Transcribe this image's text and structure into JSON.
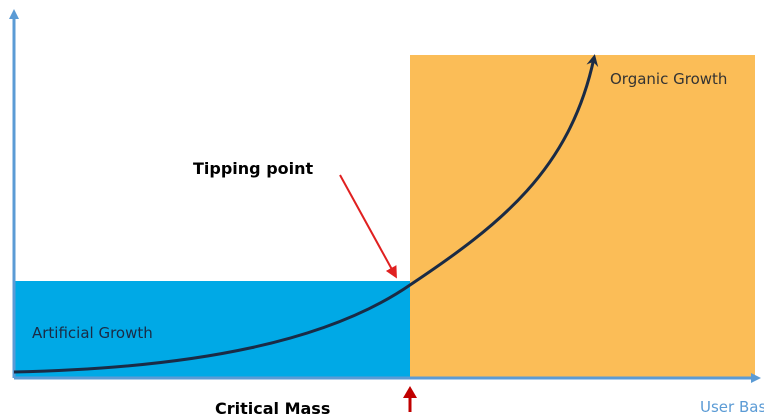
{
  "labels": {
    "organic": "Organic Growth",
    "artificial": "Artificial Growth",
    "tipping_point": "Tipping point",
    "critical_mass": "Critical Mass",
    "x_axis": "User Base"
  }
}
